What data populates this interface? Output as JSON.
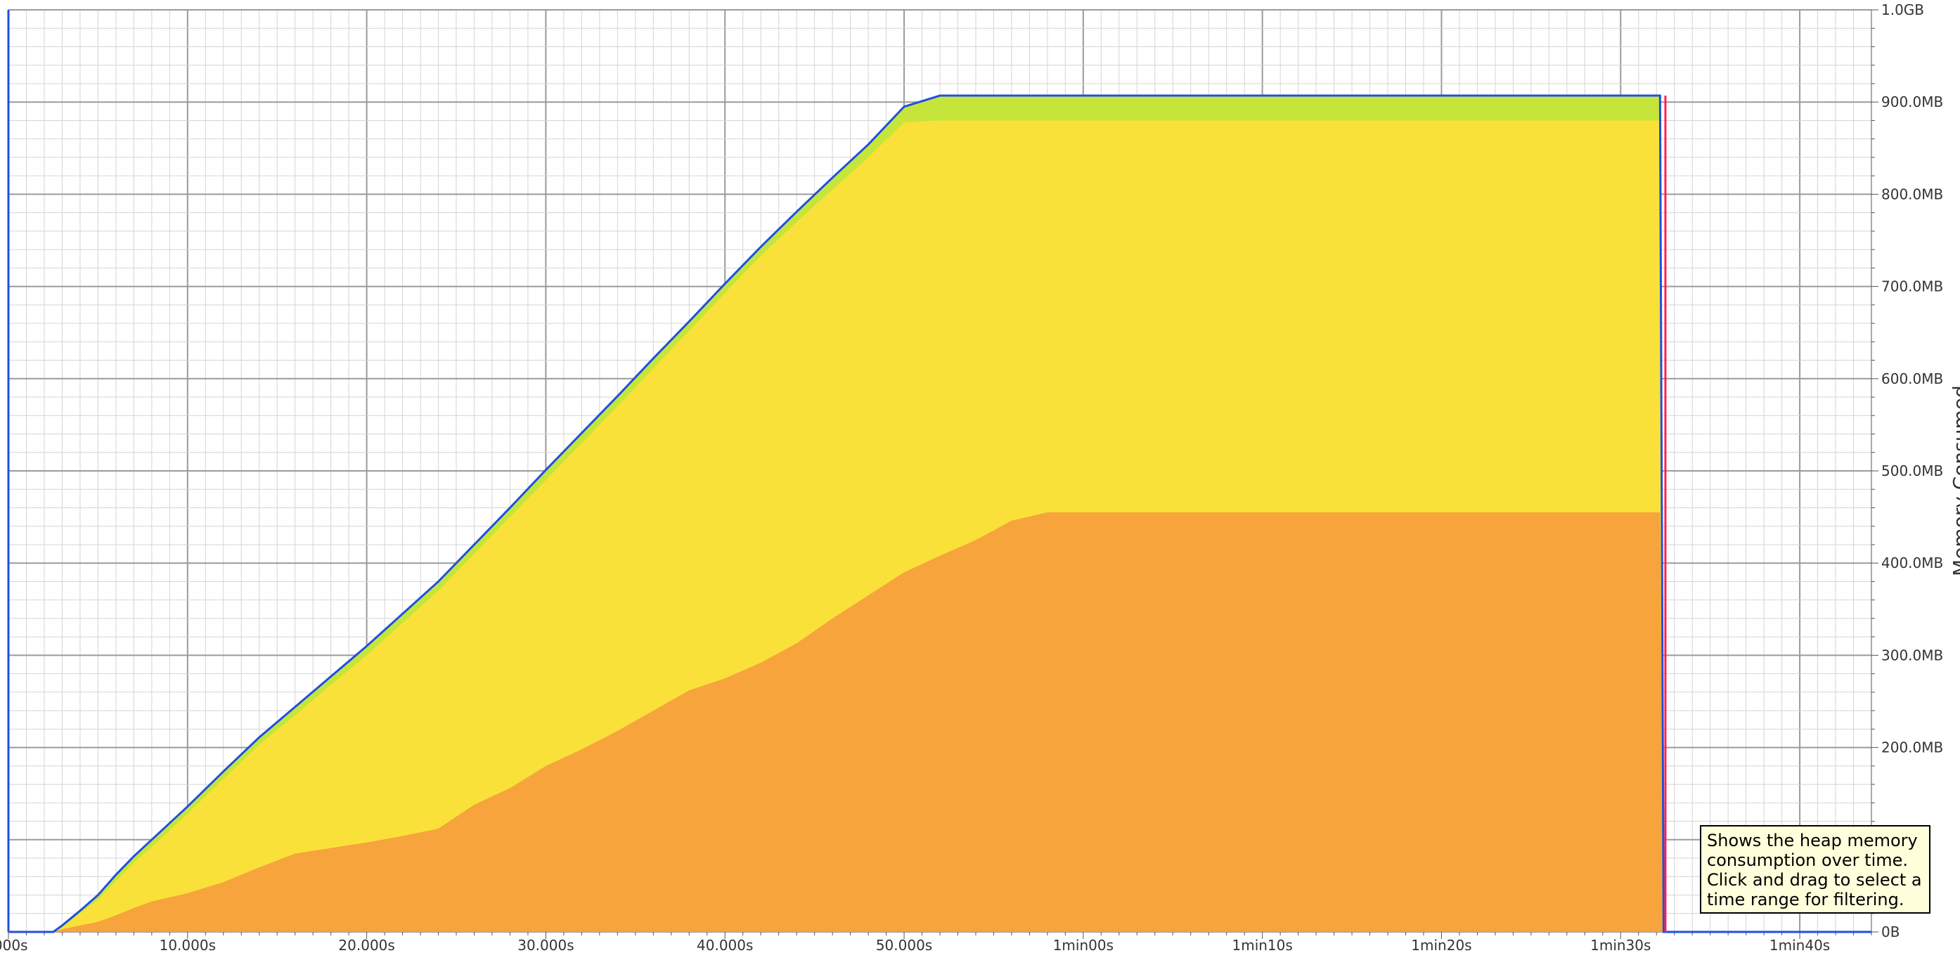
{
  "chart_data": {
    "type": "area",
    "title": "",
    "xlabel": "",
    "ylabel": "Memory Consumed",
    "x_unit": "seconds",
    "y_unit": "MB",
    "xlim": [
      0,
      104
    ],
    "ylim": [
      0,
      1000
    ],
    "grid": true,
    "x_ticks": [
      {
        "value": 0,
        "label": ".000s"
      },
      {
        "value": 10,
        "label": "10.000s"
      },
      {
        "value": 20,
        "label": "20.000s"
      },
      {
        "value": 30,
        "label": "30.000s"
      },
      {
        "value": 40,
        "label": "40.000s"
      },
      {
        "value": 50,
        "label": "50.000s"
      },
      {
        "value": 60,
        "label": "1min00s"
      },
      {
        "value": 70,
        "label": "1min10s"
      },
      {
        "value": 80,
        "label": "1min20s"
      },
      {
        "value": 90,
        "label": "1min30s"
      },
      {
        "value": 100,
        "label": "1min40s"
      }
    ],
    "y_ticks": [
      {
        "value": 0,
        "label": "0B"
      },
      {
        "value": 100,
        "label": "B"
      },
      {
        "value": 200,
        "label": "200.0MB"
      },
      {
        "value": 300,
        "label": "300.0MB"
      },
      {
        "value": 400,
        "label": "400.0MB"
      },
      {
        "value": 500,
        "label": "500.0MB"
      },
      {
        "value": 600,
        "label": "600.0MB"
      },
      {
        "value": 700,
        "label": "700.0MB"
      },
      {
        "value": 800,
        "label": "800.0MB"
      },
      {
        "value": 900,
        "label": "900.0MB"
      },
      {
        "value": 1000,
        "label": "1.0GB"
      }
    ],
    "x": [
      2.5,
      3,
      4,
      5,
      6,
      7,
      8,
      10,
      12,
      14,
      16,
      18,
      20,
      22,
      24,
      26,
      28,
      30,
      32,
      34,
      36,
      38,
      40,
      42,
      44,
      46,
      48,
      50,
      52,
      54,
      56,
      58,
      60,
      62,
      62.5,
      70,
      80,
      90,
      92.2,
      92.4,
      92.6,
      104
    ],
    "series": [
      {
        "color": "#f7a03c",
        "values": [
          0,
          3,
          7,
          11,
          18,
          26,
          33,
          42,
          54,
          70,
          85,
          91,
          97,
          104,
          112,
          138,
          156,
          180,
          198,
          218,
          240,
          262,
          275,
          292,
          313,
          340,
          365,
          390,
          408,
          425,
          446,
          455,
          455,
          455,
          455,
          455,
          455,
          455,
          455,
          0,
          0,
          0
        ]
      },
      {
        "color": "#fde03a",
        "values": [
          0,
          5,
          20,
          35,
          55,
          75,
          92,
          128,
          166,
          203,
          235,
          268,
          300,
          335,
          370,
          410,
          450,
          490,
          530,
          570,
          611,
          652,
          693,
          733,
          770,
          805,
          840,
          878,
          880,
          880,
          880,
          880,
          880,
          880,
          880,
          880,
          880,
          880,
          880,
          0,
          0,
          0
        ]
      },
      {
        "color": "#c5e53b",
        "values": [
          0,
          6,
          22,
          38,
          60,
          80,
          98,
          134,
          172,
          209,
          242,
          275,
          308,
          343,
          378,
          418,
          458,
          499,
          539,
          579,
          620,
          660,
          701,
          741,
          779,
          816,
          852,
          893,
          905,
          905,
          905,
          905,
          905,
          905,
          905,
          905,
          905,
          905,
          905,
          0,
          0,
          0
        ]
      },
      {
        "color": "#1f4fe0",
        "values": [
          0,
          7,
          23,
          40,
          62,
          82,
          100,
          136,
          174,
          211,
          244,
          277,
          310,
          345,
          380,
          420,
          460,
          501,
          541,
          581,
          622,
          662,
          703,
          743,
          781,
          818,
          854,
          895,
          907,
          907,
          907,
          907,
          907,
          907,
          907,
          907,
          907,
          907,
          907,
          0,
          0,
          0
        ]
      }
    ],
    "cursor_line": {
      "x": 92.5,
      "color": "#ff2050"
    }
  },
  "tooltip": {
    "text": "Shows the heap memory\nconsumption over time.\nClick and drag to select a\ntime range for filtering."
  }
}
